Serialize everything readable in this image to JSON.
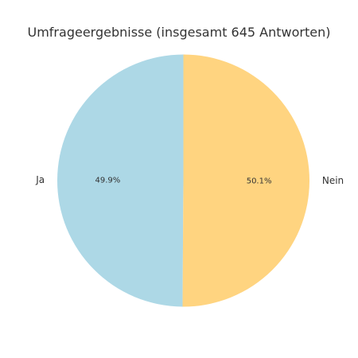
{
  "chart_data": {
    "type": "pie",
    "title": "Umfrageergebnisse (insgesamt 645 Antworten)",
    "categories": [
      "Ja",
      "Nein"
    ],
    "percent_labels": [
      "49.9%",
      "50.1%"
    ],
    "values": [
      49.9,
      50.1
    ],
    "colors": [
      "#add8e6",
      "#ffd480"
    ],
    "start_angle_deg": 90,
    "direction": "counterclockwise"
  }
}
